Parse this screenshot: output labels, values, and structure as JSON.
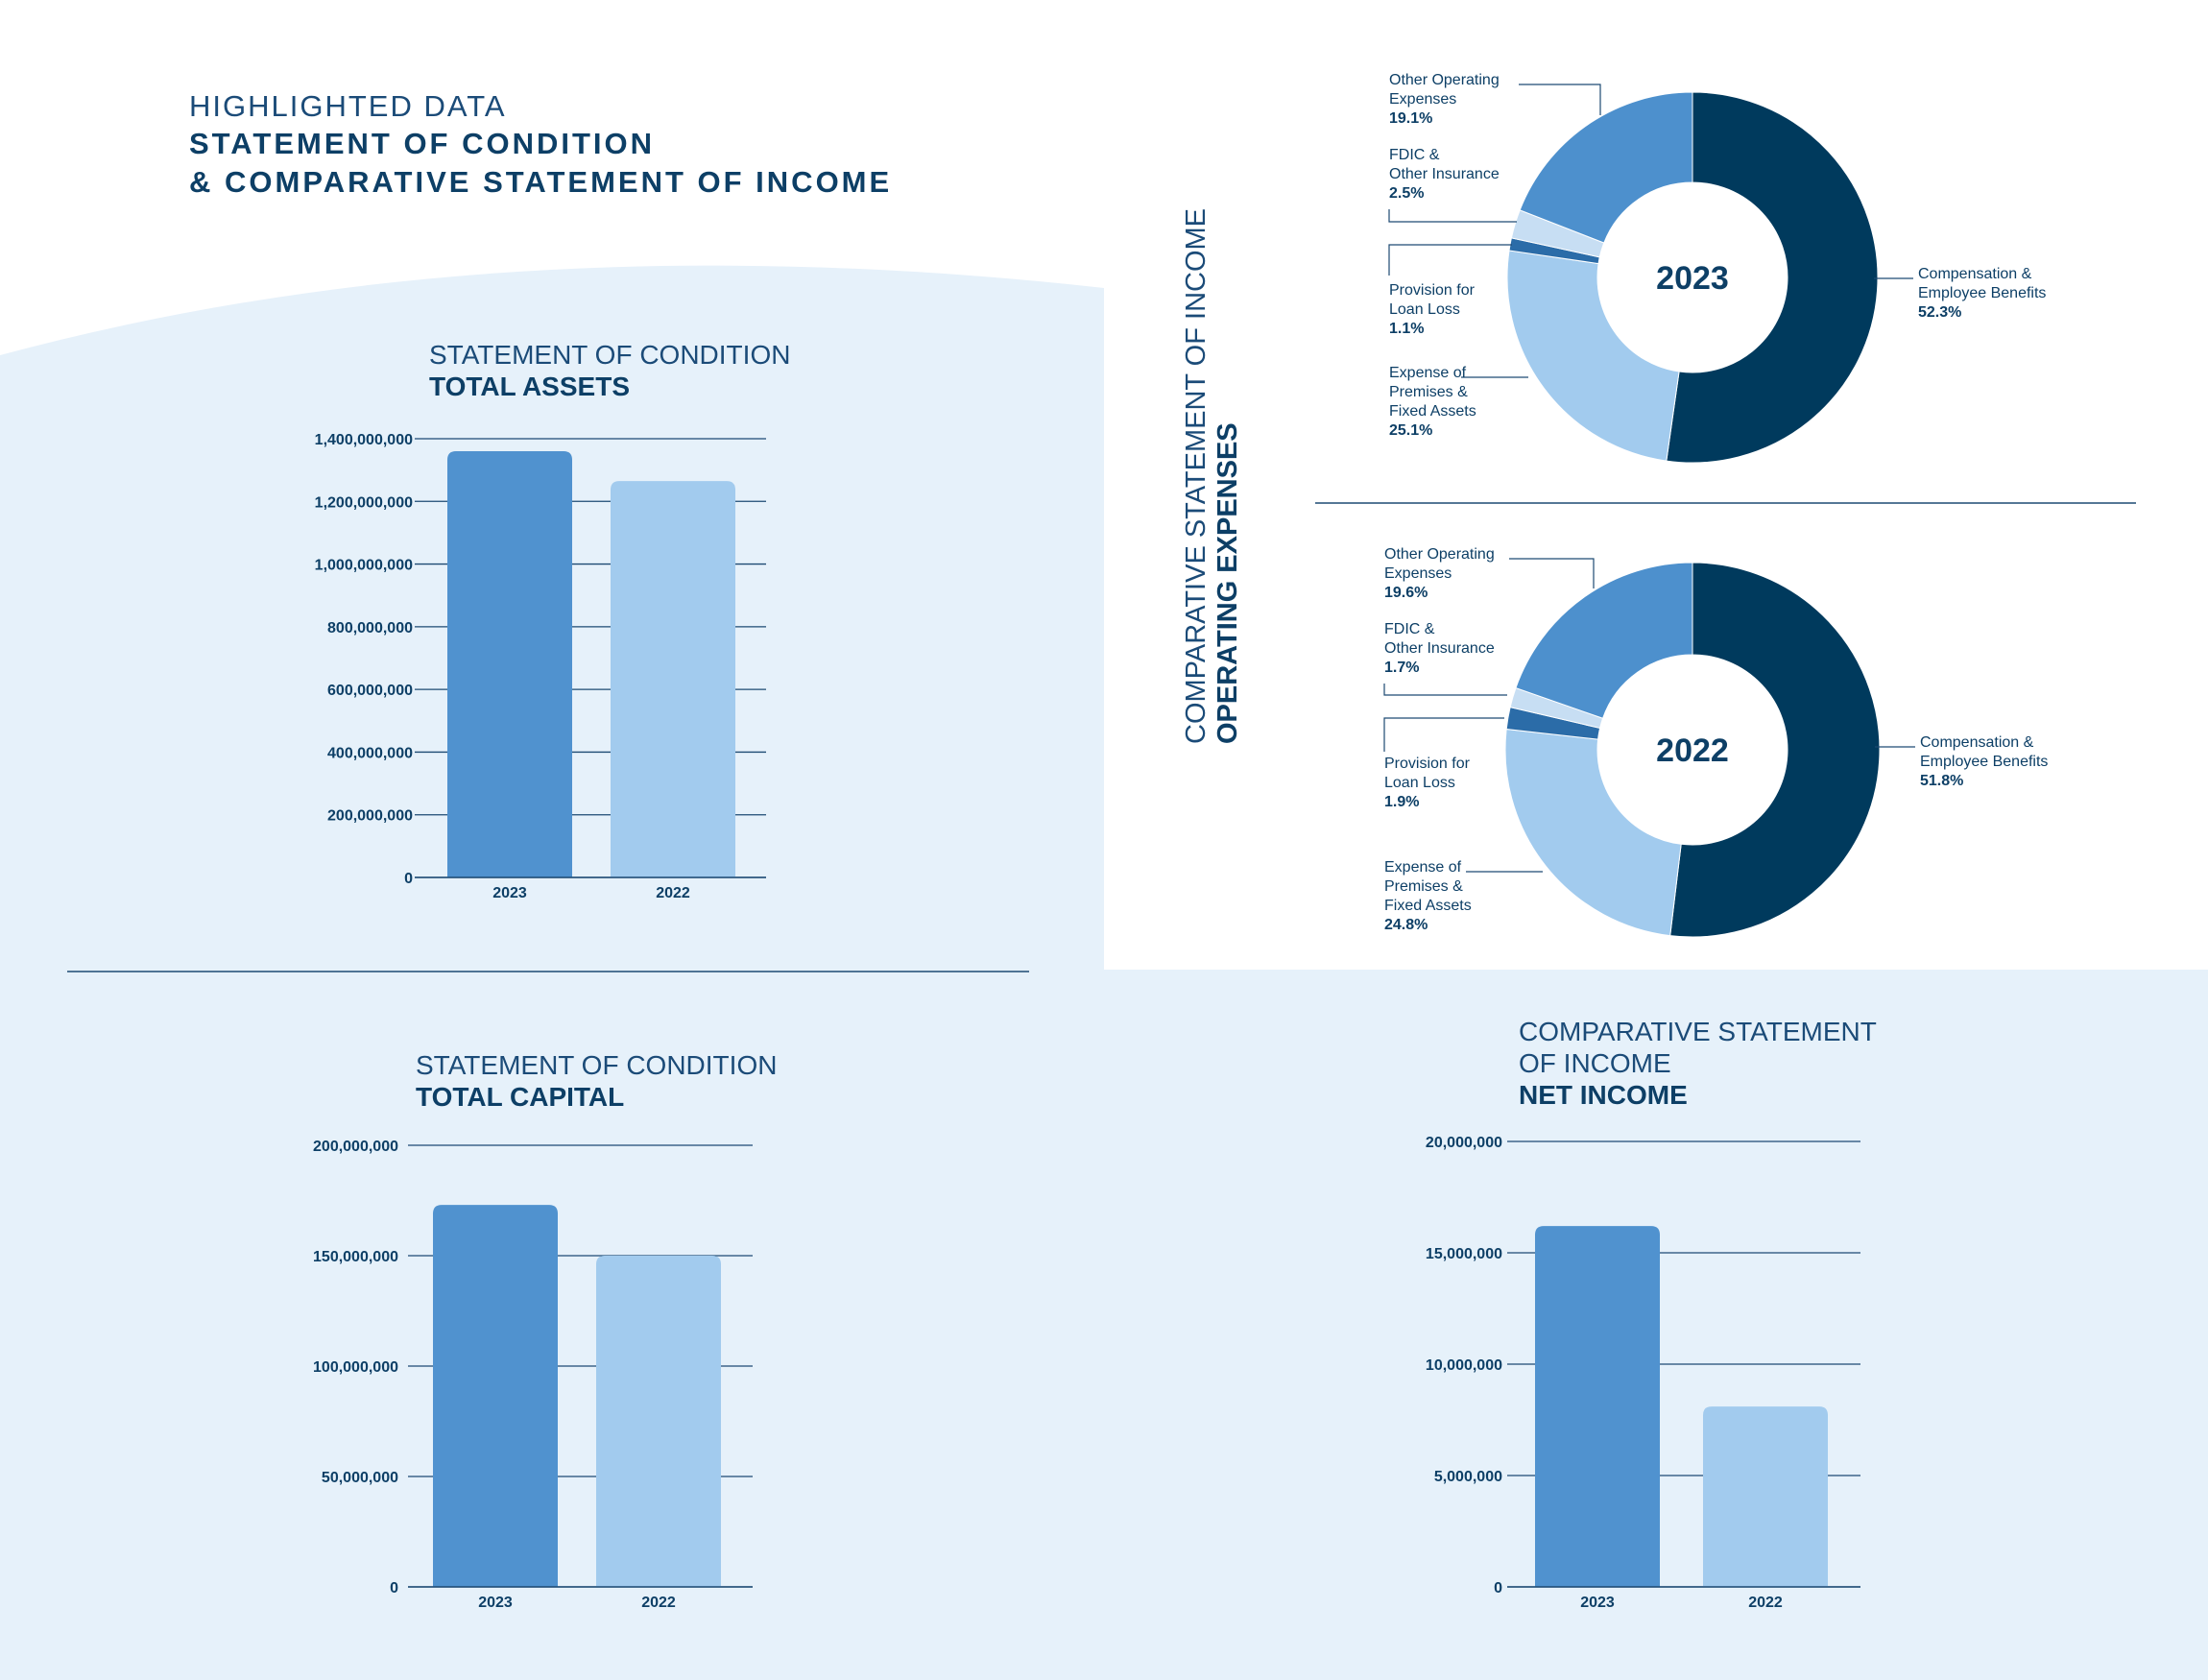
{
  "header": {
    "kicker": "HIGHLIGHTED DATA",
    "title_line1": "STATEMENT OF CONDITION",
    "title_line2": "& COMPARATIVE STATEMENT OF INCOME"
  },
  "colors": {
    "panel": "#e6f1fa",
    "bar_2023": "#5092cf",
    "bar_2022": "#a2cbee",
    "navy": "#003a5d",
    "mid_blue": "#4d90cd",
    "light_blue": "#a2cbee",
    "pale_blue": "#c7def3",
    "stripe_blue": "#2b6ca8",
    "axis": "#1d4a73"
  },
  "side_title": {
    "light": "COMPARATIVE STATEMENT OF INCOME",
    "bold": "OPERATING EXPENSES"
  },
  "charts": {
    "assets": {
      "title_light": "STATEMENT OF CONDITION",
      "title_bold": "TOTAL ASSETS"
    },
    "capital": {
      "title_light": "STATEMENT OF CONDITION",
      "title_bold": "TOTAL CAPITAL"
    },
    "netincome": {
      "title_light_1": "COMPARATIVE STATEMENT",
      "title_light_2": "OF INCOME",
      "title_bold": "NET INCOME"
    }
  },
  "chart_data": [
    {
      "id": "total_assets",
      "type": "bar",
      "title": "STATEMENT OF CONDITION TOTAL ASSETS",
      "categories": [
        "2023",
        "2022"
      ],
      "values": [
        1360000000,
        1265000000
      ],
      "ylim": [
        0,
        1400000000
      ],
      "yticks": [
        0,
        200000000,
        400000000,
        600000000,
        800000000,
        1000000000,
        1200000000,
        1400000000
      ],
      "ytick_labels": [
        "0",
        "200,000,000",
        "400,000,000",
        "600,000,000",
        "800,000,000",
        "1,000,000,000",
        "1,200,000,000",
        "1,400,000,000"
      ]
    },
    {
      "id": "total_capital",
      "type": "bar",
      "title": "STATEMENT OF CONDITION TOTAL CAPITAL",
      "categories": [
        "2023",
        "2022"
      ],
      "values": [
        173000000,
        150000000
      ],
      "ylim": [
        0,
        200000000
      ],
      "yticks": [
        0,
        50000000,
        100000000,
        150000000,
        200000000
      ],
      "ytick_labels": [
        "0",
        "50,000,000",
        "100,000,000",
        "150,000,000",
        "200,000,000"
      ]
    },
    {
      "id": "net_income",
      "type": "bar",
      "title": "COMPARATIVE STATEMENT OF INCOME NET INCOME",
      "categories": [
        "2023",
        "2022"
      ],
      "values": [
        16200000,
        8100000
      ],
      "ylim": [
        0,
        20000000
      ],
      "yticks": [
        0,
        5000000,
        10000000,
        15000000,
        20000000
      ],
      "ytick_labels": [
        "0",
        "5,000,000",
        "10,000,000",
        "15,000,000",
        "20,000,000"
      ]
    },
    {
      "id": "opex_2023",
      "type": "pie",
      "title": "2023",
      "slices": [
        {
          "label": "Compensation & Employee Benefits",
          "lines": [
            "Compensation &",
            "Employee Benefits"
          ],
          "pct_text": "52.3%",
          "value": 52.3
        },
        {
          "label": "Expense of Premises & Fixed Assets",
          "lines": [
            "Expense of",
            "Premises &",
            "Fixed Assets"
          ],
          "pct_text": "25.1%",
          "value": 25.1
        },
        {
          "label": "Provision for Loan Loss",
          "lines": [
            "Provision for",
            "Loan Loss"
          ],
          "pct_text": "1.1%",
          "value": 1.1
        },
        {
          "label": "FDIC & Other Insurance",
          "lines": [
            "FDIC &",
            "Other Insurance"
          ],
          "pct_text": "2.5%",
          "value": 2.5
        },
        {
          "label": "Other Operating Expenses",
          "lines": [
            "Other Operating",
            "Expenses"
          ],
          "pct_text": "19.1%",
          "value": 19.1
        }
      ]
    },
    {
      "id": "opex_2022",
      "type": "pie",
      "title": "2022",
      "slices": [
        {
          "label": "Compensation & Employee Benefits",
          "lines": [
            "Compensation &",
            "Employee Benefits"
          ],
          "pct_text": "51.8%",
          "value": 51.8
        },
        {
          "label": "Expense of Premises & Fixed Assets",
          "lines": [
            "Expense of",
            "Premises &",
            "Fixed Assets"
          ],
          "pct_text": "24.8%",
          "value": 24.8
        },
        {
          "label": "Provision for Loan Loss",
          "lines": [
            "Provision for",
            "Loan Loss"
          ],
          "pct_text": "1.9%",
          "value": 1.9
        },
        {
          "label": "FDIC & Other Insurance",
          "lines": [
            "FDIC &",
            "Other Insurance"
          ],
          "pct_text": "1.7%",
          "value": 1.7
        },
        {
          "label": "Other Operating Expenses",
          "lines": [
            "Other Operating",
            "Expenses"
          ],
          "pct_text": "19.6%",
          "value": 19.6
        }
      ]
    }
  ]
}
